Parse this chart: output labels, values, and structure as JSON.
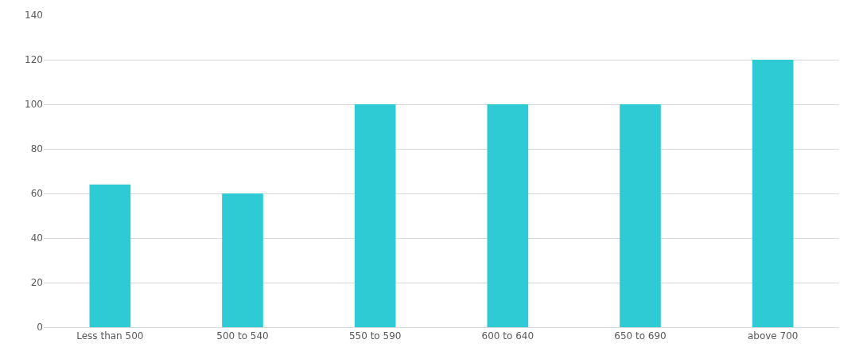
{
  "chart_data": {
    "type": "bar",
    "categories": [
      "Less than 500",
      "500 to 540",
      "550 to 590",
      "600 to 640",
      "650 to 690",
      "above 700"
    ],
    "values": [
      64,
      60,
      100,
      100,
      100,
      120
    ],
    "color": "#2ecbd4",
    "ylim": [
      0,
      140
    ],
    "yticks": [
      0,
      20,
      40,
      60,
      80,
      100,
      120,
      140
    ],
    "grid": "y"
  }
}
